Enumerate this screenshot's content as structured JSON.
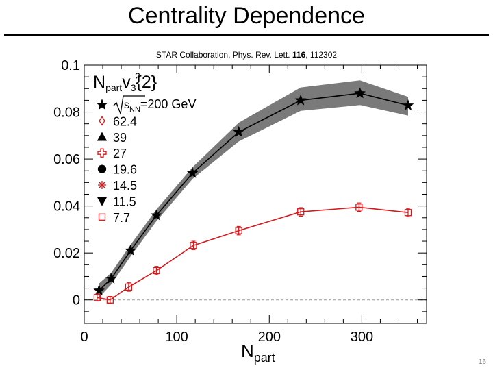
{
  "slide": {
    "title": "Centrality Dependence",
    "citation_prefix": "STAR Collaboration, Phys. Rev. Lett. ",
    "citation_volume": "116",
    "citation_suffix": ", 112302",
    "page_number": "16"
  },
  "chart_data": {
    "type": "line",
    "title": "",
    "xlabel": "N",
    "xlabel_sub": "part",
    "ylabel": "",
    "xlim": [
      0,
      370
    ],
    "ylim": [
      -0.01,
      0.1
    ],
    "x_ticks": [
      "0",
      "100",
      "200",
      "300"
    ],
    "x_tick_values": [
      0,
      100,
      200,
      300
    ],
    "y_ticks": [
      "0",
      "0.02",
      "0.04",
      "0.06",
      "0.08",
      "0.1"
    ],
    "y_tick_values": [
      0,
      0.02,
      0.04,
      0.06,
      0.08,
      0.1
    ],
    "reference_line": 0,
    "legend_position": "top-left",
    "panel_label": {
      "n": "N",
      "part": "part",
      "v": "v",
      "sup": "2",
      "sub": "3",
      "brace": "{2}"
    },
    "energy_label": {
      "s": "s",
      "nn": "NN",
      "value": "=200 GeV"
    },
    "legend": [
      {
        "label": "",
        "marker": "star",
        "filled": true,
        "color": "#000000"
      },
      {
        "label": "62.4",
        "marker": "diamond",
        "filled": false,
        "color": "#d7191c"
      },
      {
        "label": "39",
        "marker": "triangle",
        "filled": true,
        "color": "#000000"
      },
      {
        "label": "27",
        "marker": "cross",
        "filled": false,
        "color": "#d7191c"
      },
      {
        "label": "19.6",
        "marker": "circle",
        "filled": true,
        "color": "#000000"
      },
      {
        "label": "14.5",
        "marker": "asterisk",
        "filled": false,
        "color": "#d7191c"
      },
      {
        "label": "11.5",
        "marker": "triangle-down",
        "filled": true,
        "color": "#000000"
      },
      {
        "label": "7.7",
        "marker": "square",
        "filled": false,
        "color": "#d7191c"
      }
    ],
    "series": [
      {
        "name": "200 GeV",
        "color": "#000000",
        "band_color": "#7a7a7a",
        "marker": "star",
        "x": [
          16,
          29,
          50,
          78,
          117,
          167,
          234,
          298,
          350
        ],
        "y": [
          0.004,
          0.009,
          0.021,
          0.036,
          0.054,
          0.0715,
          0.085,
          0.088,
          0.0828
        ],
        "band_low": [
          0.001,
          0.0065,
          0.0185,
          0.0335,
          0.0515,
          0.0675,
          0.0805,
          0.083,
          0.0785
        ],
        "band_high": [
          0.007,
          0.0115,
          0.0235,
          0.0385,
          0.0565,
          0.0755,
          0.0905,
          0.0935,
          0.0865
        ]
      },
      {
        "name": "7.7",
        "color": "#d7191c",
        "marker": "square",
        "x": [
          14,
          28,
          48,
          78,
          118,
          167,
          234,
          297,
          350
        ],
        "y": [
          0.001,
          0.0,
          0.0055,
          0.0125,
          0.0232,
          0.0295,
          0.0375,
          0.0395,
          0.0372
        ],
        "err": [
          0.0015,
          0.0015,
          0.0018,
          0.0018,
          0.0018,
          0.0018,
          0.0018,
          0.0018,
          0.0018
        ]
      }
    ]
  }
}
